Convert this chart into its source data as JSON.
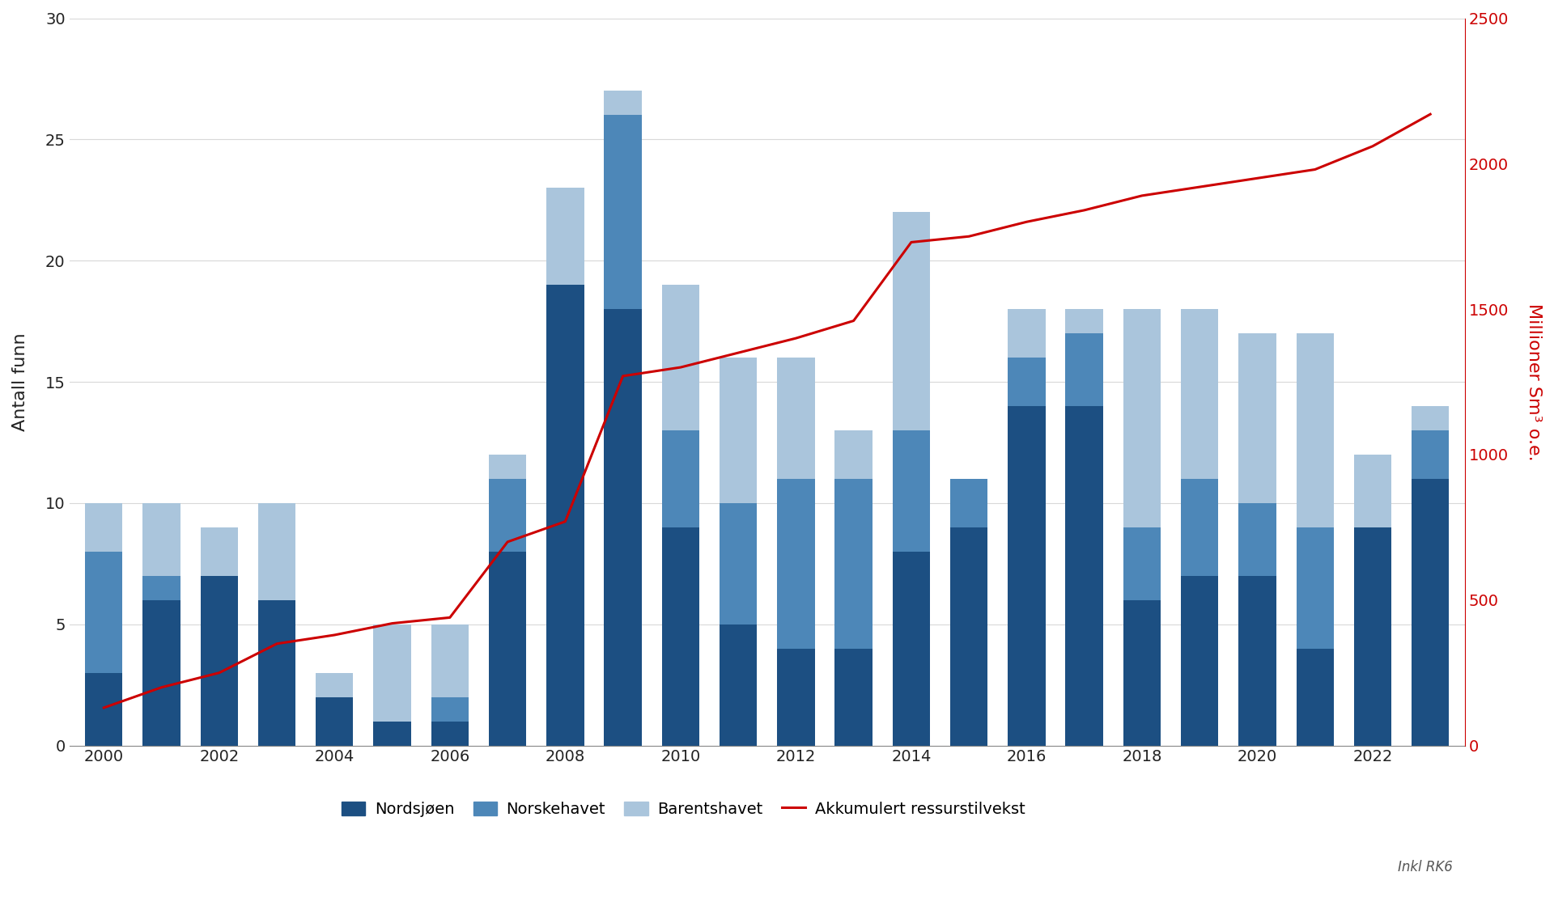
{
  "years": [
    2000,
    2001,
    2002,
    2003,
    2004,
    2005,
    2006,
    2007,
    2008,
    2009,
    2010,
    2011,
    2012,
    2013,
    2014,
    2015,
    2016,
    2017,
    2018,
    2019,
    2020,
    2021,
    2022,
    2023
  ],
  "nordsjoen": [
    3,
    6,
    7,
    6,
    2,
    1,
    1,
    8,
    19,
    18,
    9,
    5,
    4,
    4,
    8,
    9,
    14,
    14,
    6,
    7,
    7,
    4,
    9,
    11
  ],
  "norskehavet": [
    5,
    1,
    0,
    0,
    0,
    0,
    1,
    3,
    0,
    8,
    4,
    5,
    7,
    7,
    5,
    2,
    2,
    3,
    3,
    4,
    3,
    5,
    0,
    2
  ],
  "barentshavet": [
    2,
    3,
    2,
    4,
    1,
    4,
    3,
    1,
    4,
    1,
    6,
    6,
    5,
    2,
    9,
    0,
    2,
    1,
    9,
    7,
    7,
    8,
    3,
    1
  ],
  "akkumulert": [
    130,
    200,
    250,
    350,
    380,
    420,
    440,
    700,
    770,
    1270,
    1300,
    1350,
    1400,
    1460,
    1730,
    1750,
    1800,
    1840,
    1890,
    1920,
    1950,
    1980,
    2060,
    2170
  ],
  "color_nordsjoen": "#1c4f82",
  "color_norskehavet": "#4d87b8",
  "color_barentshavet": "#aac5dc",
  "color_line": "#cc0000",
  "ylabel_left": "Antall funn",
  "ylabel_right": "Millioner Sm³ o.e.",
  "ylim_left": [
    0,
    30
  ],
  "ylim_right": [
    0,
    2500
  ],
  "yticks_left": [
    0,
    5,
    10,
    15,
    20,
    25,
    30
  ],
  "yticks_right": [
    0,
    500,
    1000,
    1500,
    2000,
    2500
  ],
  "legend_labels": [
    "Nordsjøen",
    "Norskehavet",
    "Barentshavet",
    "Akkumulert ressurstilvekst"
  ],
  "note": "Inkl RK6",
  "bar_width": 0.65
}
